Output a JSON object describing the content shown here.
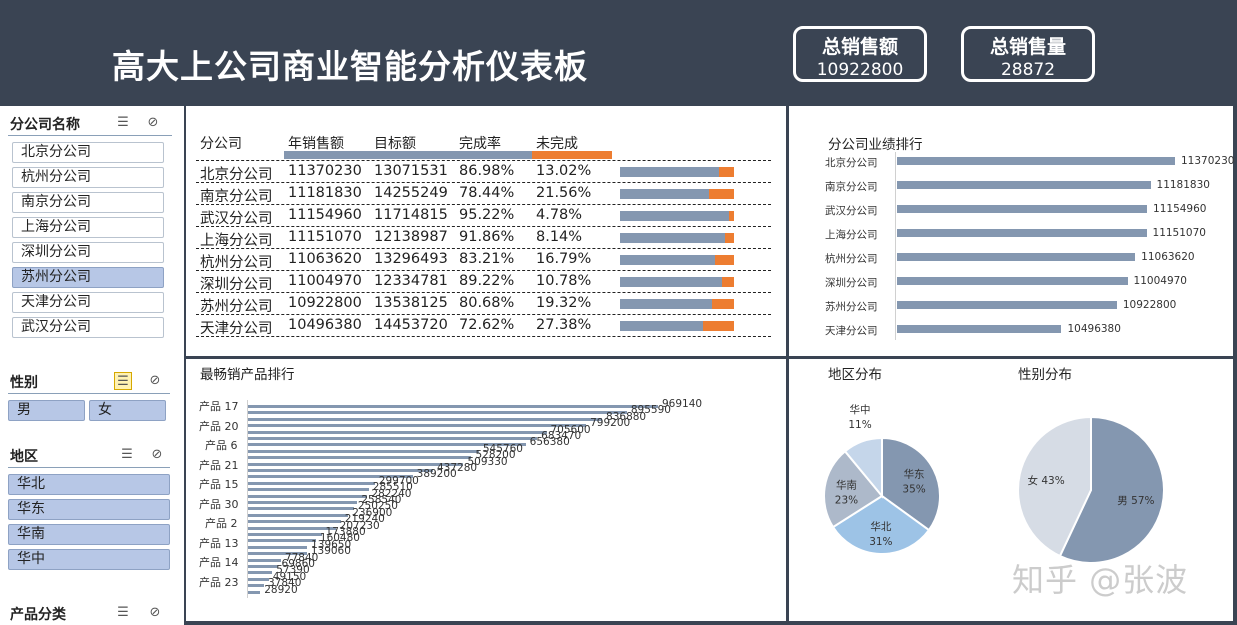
{
  "header": {
    "title": "高大上公司商业智能分析仪表板",
    "kpis": [
      {
        "label": "总销售额",
        "value": "10922800"
      },
      {
        "label": "总销售量",
        "value": "28872"
      }
    ]
  },
  "slicers": {
    "branch": {
      "title": "分公司名称",
      "items": [
        "北京分公司",
        "杭州分公司",
        "南京分公司",
        "上海分公司",
        "深圳分公司",
        "苏州分公司",
        "天津分公司",
        "武汉分公司"
      ],
      "selected": "苏州分公司"
    },
    "gender": {
      "title": "性别",
      "items": [
        "男",
        "女"
      ]
    },
    "region": {
      "title": "地区",
      "items": [
        "华北",
        "华东",
        "华南",
        "华中"
      ]
    },
    "product": {
      "title": "产品分类"
    }
  },
  "table": {
    "headers": [
      "分公司",
      "年销售额",
      "目标额",
      "完成率",
      "未完成"
    ],
    "rows": [
      [
        "北京分公司",
        "11370230",
        "13071531",
        "86.98%",
        "13.02%"
      ],
      [
        "南京分公司",
        "11181830",
        "14255249",
        "78.44%",
        "21.56%"
      ],
      [
        "武汉分公司",
        "11154960",
        "11714815",
        "95.22%",
        "4.78%"
      ],
      [
        "上海分公司",
        "11151070",
        "12138987",
        "91.86%",
        "8.14%"
      ],
      [
        "杭州分公司",
        "11063620",
        "13296493",
        "83.21%",
        "16.79%"
      ],
      [
        "深圳分公司",
        "11004970",
        "12334781",
        "89.22%",
        "10.78%"
      ],
      [
        "苏州分公司",
        "10922800",
        "13538125",
        "80.68%",
        "19.32%"
      ],
      [
        "天津分公司",
        "10496380",
        "14453720",
        "72.62%",
        "27.38%"
      ]
    ],
    "completion": [
      0.8698,
      0.7844,
      0.9522,
      0.9186,
      0.8321,
      0.8922,
      0.8068,
      0.7262
    ],
    "colors": {
      "done": "#8497b0",
      "undone": "#ed7d31"
    }
  },
  "branch_rank": {
    "title": "分公司业绩排行",
    "labels": [
      "北京分公司",
      "南京分公司",
      "武汉分公司",
      "上海分公司",
      "杭州分公司",
      "深圳分公司",
      "苏州分公司",
      "天津分公司"
    ],
    "values": [
      11370230,
      11181830,
      11154960,
      11151070,
      11063620,
      11004970,
      10922800,
      10496380
    ]
  },
  "product_rank": {
    "title": "最畅销产品排行",
    "axis_labels": [
      "产品 17",
      "产品 20",
      "产品 6",
      "产品 21",
      "产品 15",
      "产品 30",
      "产品 2",
      "产品 13",
      "产品 14",
      "产品 23"
    ],
    "values": [
      969140,
      895590,
      836880,
      799200,
      705600,
      683470,
      656380,
      545760,
      528200,
      509330,
      437280,
      389200,
      299700,
      285510,
      282240,
      258540,
      250250,
      236900,
      219240,
      207230,
      173880,
      160480,
      139650,
      139060,
      77840,
      69860,
      57390,
      49150,
      37840,
      28920
    ]
  },
  "region_pie": {
    "title": "地区分布",
    "slices": [
      {
        "label": "华东",
        "pct": "35%",
        "value": 35,
        "color": "#8497b0"
      },
      {
        "label": "华北",
        "pct": "31%",
        "value": 31,
        "color": "#9dc3e6"
      },
      {
        "label": "华南",
        "pct": "23%",
        "value": 23,
        "color": "#adb9ca"
      },
      {
        "label": "华中",
        "pct": "11%",
        "value": 11,
        "color": "#c5d6ea"
      }
    ]
  },
  "gender_pie": {
    "title": "性别分布",
    "slices": [
      {
        "label": "男 57%",
        "value": 57,
        "color": "#8497b0"
      },
      {
        "label": "女 43%",
        "value": 43,
        "color": "#d6dce5"
      }
    ]
  },
  "watermark": "知乎 @张波"
}
